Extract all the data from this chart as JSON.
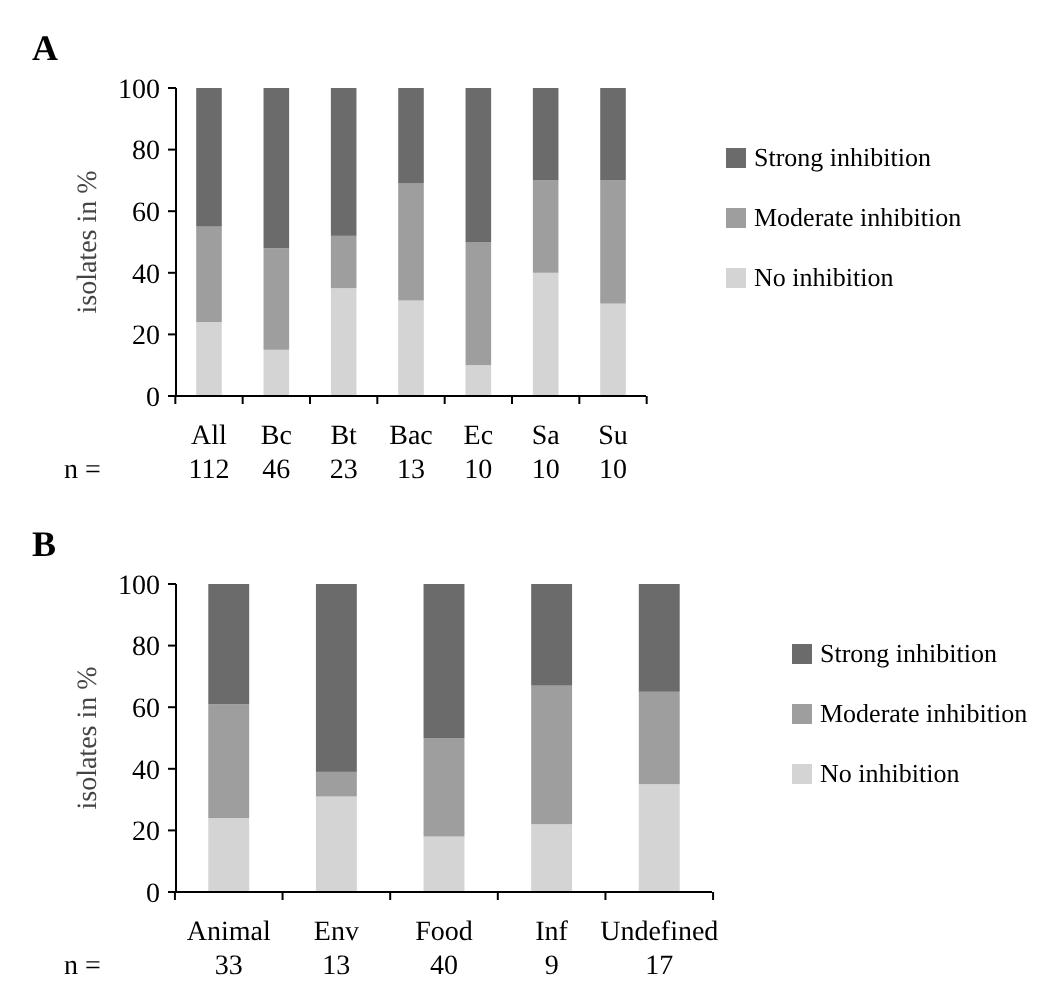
{
  "chart_data": [
    {
      "type": "bar",
      "title": "A",
      "ylabel": "isolates in %",
      "stacked": true,
      "legend": "right",
      "grid": false,
      "categories": [
        "All\n112",
        "Bc\n46",
        "Bt\n23",
        "Bac\n13",
        "Ec\n10",
        "Sa\n10",
        "Su\n10"
      ],
      "ylim": [
        0,
        100
      ],
      "yticks": [
        0,
        20,
        40,
        60,
        80,
        100
      ],
      "annotations": [
        "n ="
      ],
      "series": [
        {
          "name": "No inhibition",
          "color": "#d4d4d4",
          "values": [
            24,
            15,
            35,
            31,
            10,
            40,
            30
          ]
        },
        {
          "name": "Moderate inhibition",
          "color": "#9e9e9e",
          "values": [
            31,
            33,
            17,
            38,
            40,
            30,
            40
          ]
        },
        {
          "name": "Strong inhibition",
          "color": "#6b6b6b",
          "values": [
            45,
            52,
            48,
            31,
            50,
            30,
            30
          ]
        }
      ]
    },
    {
      "type": "bar",
      "title": "B",
      "ylabel": "isolates in %",
      "stacked": true,
      "legend": "right",
      "grid": false,
      "categories": [
        "Animal\n33",
        "Env\n13",
        "Food\n40",
        "Inf\n9",
        "Undefined\n17"
      ],
      "ylim": [
        0,
        100
      ],
      "yticks": [
        0,
        20,
        40,
        60,
        80,
        100
      ],
      "annotations": [
        "n ="
      ],
      "series": [
        {
          "name": "No inhibition",
          "color": "#d4d4d4",
          "values": [
            24,
            31,
            18,
            22,
            35
          ]
        },
        {
          "name": "Moderate inhibition",
          "color": "#9e9e9e",
          "values": [
            37,
            8,
            32,
            45,
            30
          ]
        },
        {
          "name": "Strong inhibition",
          "color": "#6b6b6b",
          "values": [
            39,
            61,
            50,
            33,
            35
          ]
        }
      ]
    }
  ]
}
